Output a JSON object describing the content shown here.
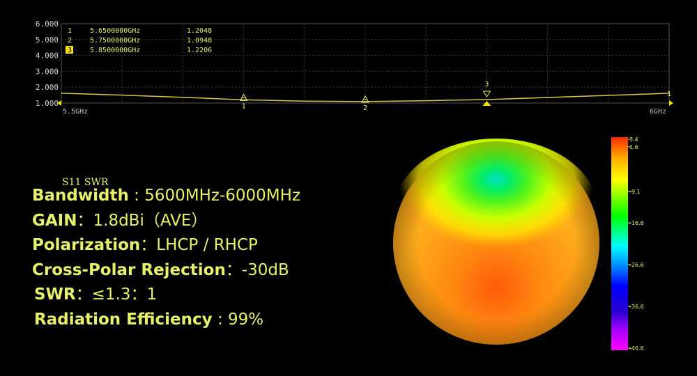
{
  "chart_data": [
    {
      "type": "line",
      "ylabel": "",
      "xlabel": "",
      "x_tick_labels": {
        "start": "5.5GHz",
        "end": "6GHz"
      },
      "y_ticks": [
        "6.000",
        "5.000",
        "4.000",
        "3.000",
        "2.000",
        "1.000"
      ],
      "ylim": [
        1.0,
        6.0
      ],
      "xlim_ghz": [
        5.5,
        6.0
      ],
      "grid": true,
      "series_color": "#d6c84a",
      "x": [
        5.5,
        5.55,
        5.6,
        5.65,
        5.7,
        5.75,
        5.8,
        5.85,
        5.9,
        5.95,
        6.0
      ],
      "y": [
        1.62,
        1.5,
        1.36,
        1.2048,
        1.12,
        1.0948,
        1.15,
        1.2206,
        1.35,
        1.48,
        1.62
      ],
      "markers": [
        {
          "id": "1",
          "freq_label": "5.6500000GHz",
          "swr": "1.2048",
          "freq": 5.65,
          "value": 1.2048
        },
        {
          "id": "2",
          "freq_label": "5.7500000GHz",
          "swr": "1.0948",
          "freq": 5.75,
          "value": 1.0948
        },
        {
          "id": "3",
          "freq_label": "5.8500000GHz",
          "swr": "1.2206",
          "freq": 5.85,
          "value": 1.2206
        }
      ],
      "active_marker": "3",
      "right_edge_label": "1"
    },
    {
      "type": "heatmap",
      "description_type": "3d-radiation-pattern",
      "colorbar_ticks": [
        "3.4",
        "1.6",
        "-9.1",
        "-16.6",
        "-26.6",
        "-36.6",
        "-46.6"
      ],
      "colorbar_values": [
        3.4,
        1.6,
        -9.1,
        -16.6,
        -26.6,
        -36.6,
        -46.6
      ],
      "colorbar_colors": [
        "#ff2a00",
        "#ffff00",
        "#00ff00",
        "#00ffff",
        "#0000ff",
        "#000080",
        "#ff00ff"
      ]
    }
  ],
  "caption": "S11 SWR",
  "specs": [
    {
      "label": "Bandwidth",
      "sep": " : ",
      "value": "5600MHz-6000MHz"
    },
    {
      "label": "GAIN",
      "sep": "：",
      "value": "1.8dBi（AVE）"
    },
    {
      "label": "Polarization",
      "sep": "：",
      "value": "LHCP / RHCP"
    },
    {
      "label": "Cross-Polar Rejection",
      "sep": "：",
      "value": "-30dB"
    },
    {
      "label": "SWR",
      "sep": "：",
      "value": "≤1.3：1"
    },
    {
      "label": "Radiation Efficiency",
      "sep": " : ",
      "value": "99%"
    }
  ],
  "colors": {
    "accent": "#e6f06a",
    "trace": "#d6c84a",
    "grid": "#3a3a3a",
    "marker": "#f2e000"
  }
}
